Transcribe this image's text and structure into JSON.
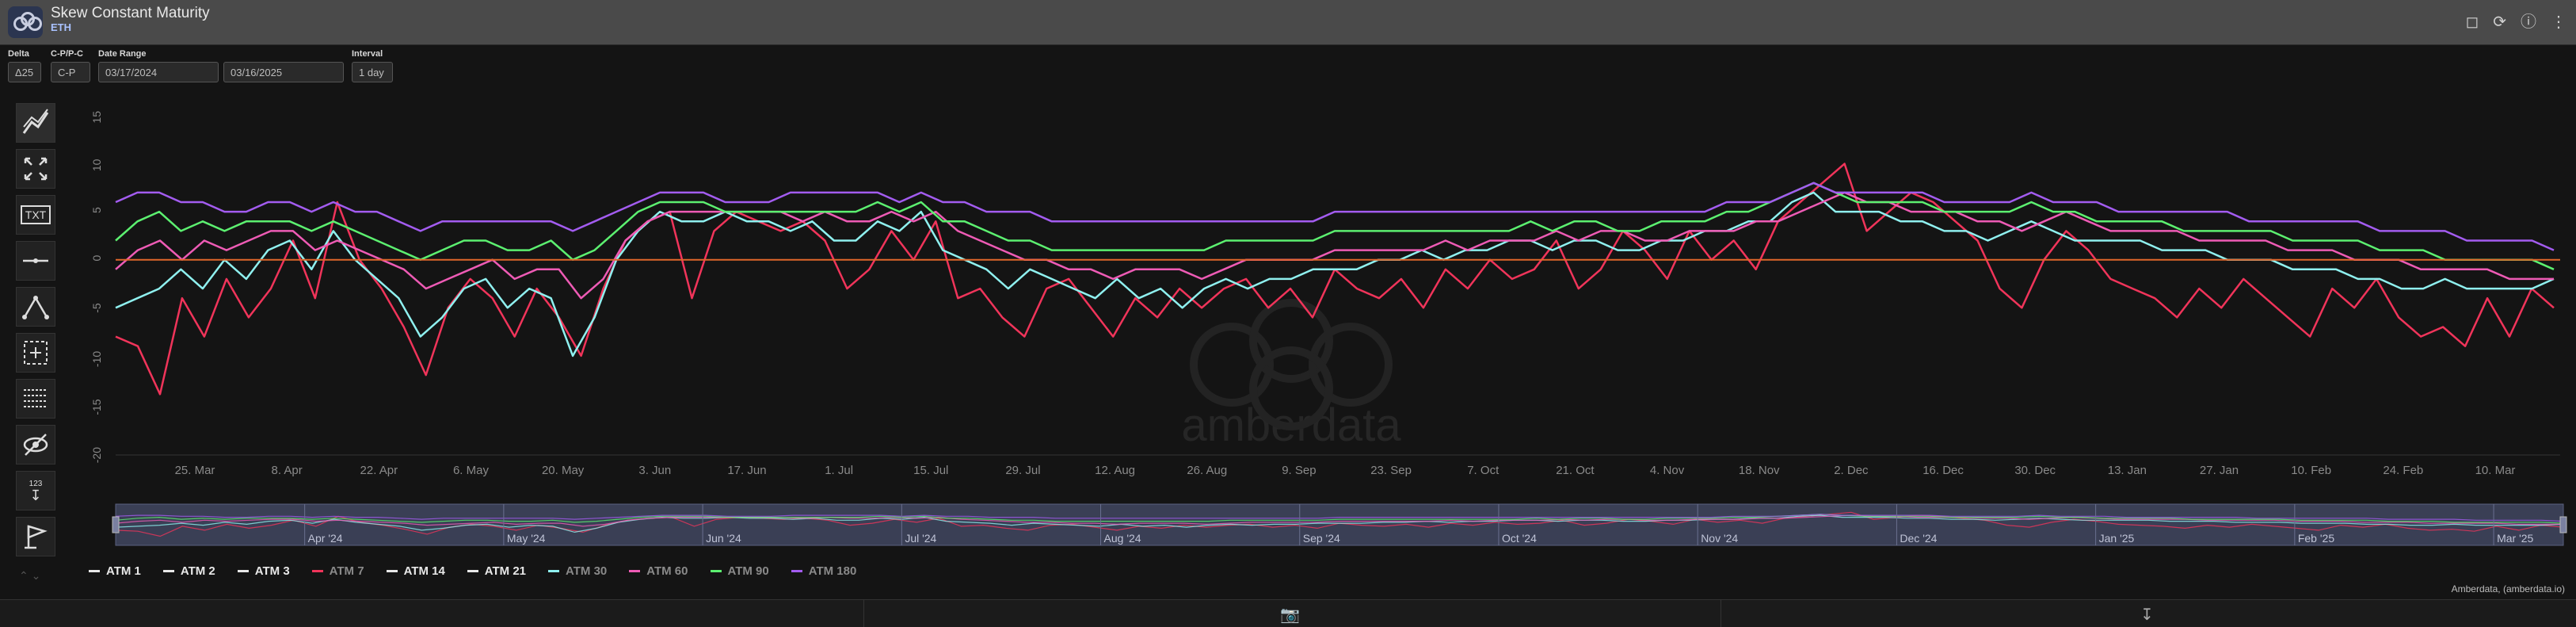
{
  "header": {
    "title": "Skew Constant Maturity",
    "subtitle": "ETH",
    "icons": [
      "bookmark-icon",
      "refresh-icon",
      "info-icon",
      "more-icon"
    ]
  },
  "controls": {
    "delta": {
      "label": "Delta",
      "value": "Δ25"
    },
    "cpc": {
      "label": "C-P/P-C",
      "value": "C-P"
    },
    "date_range": {
      "label": "Date Range",
      "start": "03/17/2024",
      "end": "03/16/2025"
    },
    "interval": {
      "label": "Interval",
      "value": "1 day"
    }
  },
  "toolbar": {
    "tools": [
      "trend-line-icon",
      "zoom-icon",
      "text-icon",
      "horizontal-line-icon",
      "pattern-icon",
      "select-area-icon",
      "grid-icon",
      "hide-icon",
      "measure-icon",
      "flag-icon"
    ],
    "text_tool_label": "TXT",
    "measure_label": "123"
  },
  "chart_data": {
    "type": "line",
    "x_ticks": [
      "25. Mar",
      "8. Apr",
      "22. Apr",
      "6. May",
      "20. May",
      "3. Jun",
      "17. Jun",
      "1. Jul",
      "15. Jul",
      "29. Jul",
      "12. Aug",
      "26. Aug",
      "9. Sep",
      "23. Sep",
      "7. Oct",
      "21. Oct",
      "4. Nov",
      "18. Nov",
      "2. Dec",
      "16. Dec",
      "30. Dec",
      "13. Jan",
      "27. Jan",
      "10. Feb",
      "24. Feb",
      "10. Mar"
    ],
    "y_ticks": [
      15,
      10,
      5,
      0,
      -5,
      -10,
      -15,
      -20
    ],
    "ylim": [
      -20,
      15
    ],
    "x_start": "2024-03-17",
    "x_end": "2025-03-16",
    "zero_line_color": "#e0662b",
    "watermark": "amberdata",
    "navigator_ticks": [
      "Apr '24",
      "May '24",
      "Jun '24",
      "Jul '24",
      "Aug '24",
      "Sep '24",
      "Oct '24",
      "Nov '24",
      "Dec '24",
      "Jan '25",
      "Feb '25",
      "Mar '25"
    ],
    "series": [
      {
        "name": "ATM 1",
        "color": "#e8e8e8",
        "visible": false,
        "values": []
      },
      {
        "name": "ATM 2",
        "color": "#e8e8e8",
        "visible": false,
        "values": []
      },
      {
        "name": "ATM 3",
        "color": "#e8e8e8",
        "visible": false,
        "values": []
      },
      {
        "name": "ATM 7",
        "color": "#f0345a",
        "visible": true,
        "values": [
          -8,
          -9,
          -14,
          -4,
          -8,
          -2,
          -6,
          -3,
          2,
          -4,
          6,
          0,
          -3,
          -7,
          -12,
          -5,
          -2,
          -4,
          -8,
          -3,
          -6,
          -10,
          -3,
          2,
          4,
          5,
          -4,
          3,
          5,
          4,
          3,
          4,
          2,
          -3,
          -1,
          3,
          0,
          4,
          -4,
          -3,
          -6,
          -8,
          -3,
          -2,
          -5,
          -8,
          -4,
          -6,
          -3,
          -5,
          -3,
          -2,
          -5,
          -3,
          -6,
          -1,
          -3,
          -4,
          -2,
          -5,
          -1,
          -3,
          0,
          -2,
          -1,
          2,
          -3,
          -1,
          3,
          1,
          -2,
          3,
          0,
          2,
          -1,
          4,
          6,
          8,
          10,
          3,
          5,
          7,
          6,
          4,
          2,
          -3,
          -5,
          0,
          3,
          1,
          -2,
          -3,
          -4,
          -6,
          -3,
          -5,
          -2,
          -4,
          -6,
          -8,
          -3,
          -5,
          -2,
          -6,
          -8,
          -7,
          -9,
          -4,
          -8,
          -3,
          -5
        ]
      },
      {
        "name": "ATM 14",
        "color": "#e8e8e8",
        "visible": false,
        "values": []
      },
      {
        "name": "ATM 21",
        "color": "#e8e8e8",
        "visible": false,
        "values": []
      },
      {
        "name": "ATM 30",
        "color": "#8ff0ef",
        "visible": true,
        "values": [
          -5,
          -4,
          -3,
          -1,
          -3,
          0,
          -2,
          1,
          2,
          -1,
          3,
          0,
          -2,
          -4,
          -8,
          -6,
          -3,
          -2,
          -5,
          -3,
          -4,
          -10,
          -6,
          0,
          3,
          5,
          4,
          4,
          5,
          4,
          4,
          3,
          4,
          2,
          2,
          4,
          3,
          5,
          1,
          0,
          -1,
          -3,
          -1,
          -2,
          -3,
          -4,
          -2,
          -4,
          -3,
          -5,
          -3,
          -2,
          -3,
          -2,
          -2,
          -1,
          -1,
          -1,
          0,
          0,
          1,
          0,
          1,
          1,
          2,
          2,
          1,
          2,
          2,
          1,
          1,
          2,
          2,
          3,
          3,
          4,
          4,
          6,
          7,
          5,
          5,
          5,
          4,
          4,
          3,
          3,
          2,
          3,
          4,
          3,
          2,
          2,
          2,
          2,
          1,
          1,
          1,
          0,
          0,
          0,
          -1,
          -1,
          -1,
          -2,
          -2,
          -3,
          -3,
          -2,
          -3,
          -3,
          -3,
          -3,
          -2
        ]
      },
      {
        "name": "ATM 60",
        "color": "#ee5bb5",
        "visible": true,
        "values": [
          -1,
          1,
          2,
          0,
          2,
          1,
          2,
          3,
          3,
          1,
          2,
          1,
          0,
          -1,
          -3,
          -2,
          -1,
          0,
          -2,
          -1,
          -1,
          -4,
          -2,
          2,
          4,
          5,
          5,
          5,
          5,
          5,
          5,
          4,
          5,
          4,
          4,
          5,
          4,
          5,
          3,
          2,
          1,
          0,
          0,
          -1,
          -1,
          -2,
          -1,
          -1,
          -1,
          -2,
          -1,
          0,
          0,
          0,
          0,
          1,
          1,
          1,
          1,
          1,
          2,
          1,
          2,
          2,
          2,
          3,
          2,
          3,
          3,
          2,
          2,
          3,
          3,
          3,
          4,
          4,
          5,
          6,
          7,
          6,
          6,
          5,
          5,
          5,
          4,
          4,
          3,
          4,
          5,
          4,
          3,
          3,
          3,
          3,
          2,
          2,
          2,
          2,
          1,
          1,
          1,
          0,
          0,
          0,
          -1,
          -1,
          -1,
          -1,
          -2,
          -2,
          -2
        ]
      },
      {
        "name": "ATM 90",
        "color": "#5cf070",
        "visible": true,
        "values": [
          2,
          4,
          5,
          3,
          4,
          3,
          4,
          4,
          4,
          3,
          4,
          3,
          2,
          1,
          0,
          1,
          2,
          2,
          1,
          1,
          2,
          0,
          1,
          3,
          5,
          6,
          6,
          6,
          5,
          5,
          5,
          5,
          5,
          5,
          5,
          6,
          5,
          6,
          4,
          4,
          3,
          2,
          2,
          1,
          1,
          1,
          1,
          1,
          1,
          1,
          1,
          2,
          2,
          2,
          2,
          2,
          3,
          3,
          3,
          3,
          3,
          3,
          3,
          3,
          3,
          4,
          3,
          4,
          4,
          3,
          3,
          4,
          4,
          4,
          5,
          5,
          6,
          7,
          8,
          7,
          6,
          6,
          6,
          6,
          5,
          5,
          5,
          5,
          6,
          5,
          5,
          4,
          4,
          4,
          4,
          3,
          3,
          3,
          3,
          3,
          2,
          2,
          2,
          2,
          1,
          1,
          1,
          0,
          0,
          0,
          0,
          0,
          -1
        ]
      },
      {
        "name": "ATM 180",
        "color": "#a35cf0",
        "visible": true,
        "values": [
          6,
          7,
          7,
          6,
          6,
          5,
          5,
          6,
          6,
          5,
          6,
          5,
          5,
          4,
          3,
          4,
          4,
          4,
          4,
          4,
          4,
          3,
          4,
          5,
          6,
          7,
          7,
          7,
          6,
          6,
          6,
          7,
          7,
          7,
          7,
          7,
          6,
          7,
          6,
          6,
          5,
          5,
          5,
          4,
          4,
          4,
          4,
          4,
          4,
          4,
          4,
          4,
          4,
          4,
          4,
          4,
          5,
          5,
          5,
          5,
          5,
          5,
          5,
          5,
          5,
          5,
          5,
          5,
          5,
          5,
          5,
          5,
          5,
          5,
          6,
          6,
          6,
          7,
          8,
          7,
          7,
          7,
          7,
          7,
          6,
          6,
          6,
          6,
          7,
          6,
          6,
          6,
          5,
          5,
          5,
          5,
          5,
          5,
          4,
          4,
          4,
          4,
          4,
          4,
          3,
          3,
          3,
          3,
          2,
          2,
          2,
          2,
          1
        ]
      }
    ]
  },
  "legend": [
    "ATM 1",
    "ATM 2",
    "ATM 3",
    "ATM 7",
    "ATM 14",
    "ATM 21",
    "ATM 30",
    "ATM 60",
    "ATM 90",
    "ATM 180"
  ],
  "footer": {
    "credit": "Amberdata, (amberdata.io)"
  }
}
